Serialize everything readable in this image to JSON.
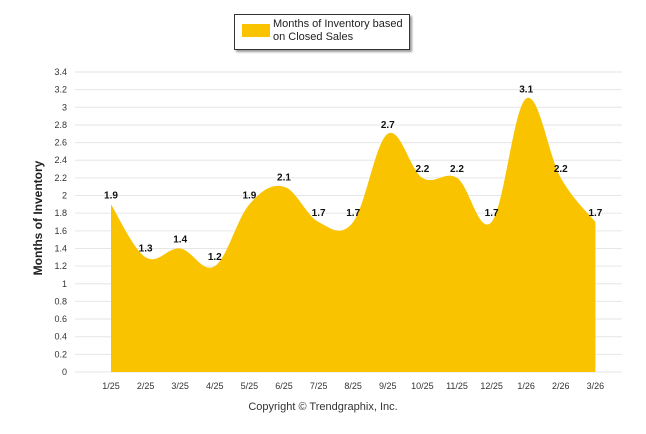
{
  "chart_data": {
    "type": "area",
    "title": "",
    "series_name": "Months of Inventory based on Closed Sales",
    "categories": [
      "1/25",
      "2/25",
      "3/25",
      "4/25",
      "5/25",
      "6/25",
      "7/25",
      "8/25",
      "9/25",
      "10/25",
      "11/25",
      "12/25",
      "1/26",
      "2/26",
      "3/26"
    ],
    "values": [
      1.9,
      1.3,
      1.4,
      1.2,
      1.9,
      2.1,
      1.7,
      1.7,
      2.7,
      2.2,
      2.2,
      1.7,
      3.1,
      2.2,
      1.7
    ],
    "data_labels": [
      "1.9",
      "1.3",
      "1.4",
      "1.2",
      "1.9",
      "2.1",
      "1.7",
      "1.7",
      "2.7",
      "2.2",
      "2.2",
      "1.7",
      "3.1",
      "2.2",
      "1.7"
    ],
    "ylabel": "Months of Inventory",
    "xlabel": "",
    "ylim": [
      0,
      3.4
    ],
    "yticks": [
      "0",
      "0.2",
      "0.4",
      "0.6",
      "0.8",
      "1",
      "1.2",
      "1.4",
      "1.6",
      "1.8",
      "2",
      "2.2",
      "2.4",
      "2.6",
      "2.8",
      "3",
      "3.2",
      "3.4"
    ],
    "grid": true,
    "legend_position": "top-center",
    "color": "#F9C300"
  },
  "legend": {
    "line1": "Months of Inventory based",
    "line2": "on Closed Sales"
  },
  "footer": {
    "copyright": "Copyright © Trendgraphix, Inc."
  }
}
